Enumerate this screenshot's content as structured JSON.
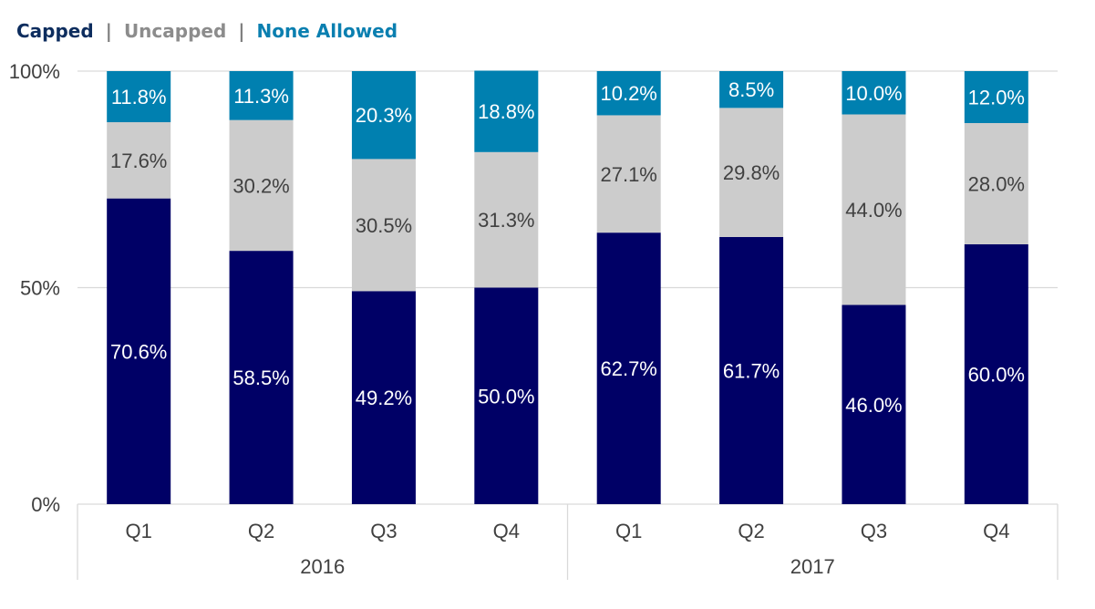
{
  "legend": {
    "capped": "Capped",
    "uncapped": "Uncapped",
    "none_allowed": "None Allowed",
    "separator": "|"
  },
  "colors": {
    "capped": "#000066",
    "uncapped": "#cccccc",
    "none_allowed": "#0080b0",
    "legend_capped": "#0d2d5e",
    "legend_uncapped": "#8c8c8c",
    "legend_none_allowed": "#0a7fb0",
    "gridline": "#d9d9d9",
    "axis_text": "#404040"
  },
  "chart_data": {
    "type": "bar",
    "stacked": true,
    "percent_stacked": true,
    "categories": [
      "Q1",
      "Q2",
      "Q3",
      "Q4",
      "Q1",
      "Q2",
      "Q3",
      "Q4"
    ],
    "groups": [
      {
        "label": "2016",
        "categories": [
          "Q1",
          "Q2",
          "Q3",
          "Q4"
        ]
      },
      {
        "label": "2017",
        "categories": [
          "Q1",
          "Q2",
          "Q3",
          "Q4"
        ]
      }
    ],
    "series": [
      {
        "name": "Capped",
        "values": [
          70.6,
          58.5,
          49.2,
          50.0,
          62.7,
          61.7,
          46.0,
          60.0
        ],
        "labels": [
          "70.6%",
          "58.5%",
          "49.2%",
          "50.0%",
          "62.7%",
          "61.7%",
          "46.0%",
          "60.0%"
        ]
      },
      {
        "name": "Uncapped",
        "values": [
          17.6,
          30.2,
          30.5,
          31.3,
          27.1,
          29.8,
          44.0,
          28.0
        ],
        "labels": [
          "17.6%",
          "30.2%",
          "30.5%",
          "31.3%",
          "27.1%",
          "29.8%",
          "44.0%",
          "28.0%"
        ]
      },
      {
        "name": "None Allowed",
        "values": [
          11.8,
          11.3,
          20.3,
          18.8,
          10.2,
          8.5,
          10.0,
          12.0
        ],
        "labels": [
          "11.8%",
          "11.3%",
          "20.3%",
          "18.8%",
          "10.2%",
          "8.5%",
          "10.0%",
          "12.0%"
        ]
      }
    ],
    "y_ticks": [
      "0%",
      "50%",
      "100%"
    ],
    "ylim": [
      0,
      100
    ],
    "grid": true,
    "legend_position": "top-left"
  }
}
